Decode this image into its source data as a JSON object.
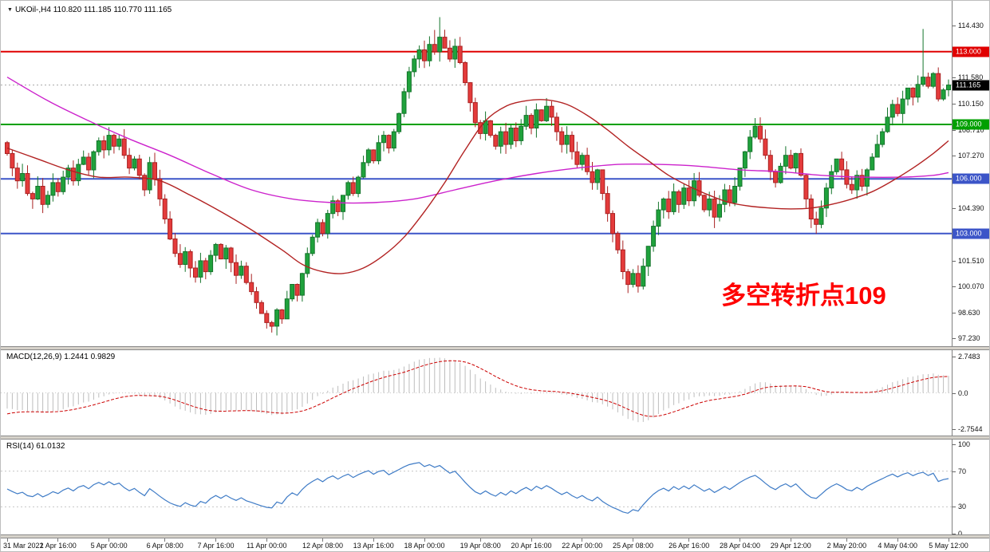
{
  "window": {
    "symbol_period": "UKOil-,H4",
    "ohlc": "110.820 111.185 110.770 111.165"
  },
  "annotation": {
    "text": "多空转折点109",
    "color": "#ff0000"
  },
  "indicators": {
    "macd_label": "MACD(12,26,9) 1.2441 0.9829",
    "rsi_label": "RSI(14) 61.0132"
  },
  "chart_data": {
    "type": "candlestick",
    "symbol": "UKOil-",
    "timeframe": "H4",
    "current_ohlc": {
      "open": 110.82,
      "high": 111.185,
      "low": 110.77,
      "close": 111.165
    },
    "ylim": [
      96.8,
      115.8
    ],
    "price_ticks": [
      "114.430",
      "111.580",
      "110.150",
      "108.710",
      "107.270",
      "104.390",
      "101.510",
      "100.070",
      "98.630",
      "97.230"
    ],
    "horizontal_levels": [
      {
        "price": 113.0,
        "label": "113.000",
        "color": "#e00000"
      },
      {
        "price": 109.0,
        "label": "109.000",
        "color": "#00a000"
      },
      {
        "price": 106.0,
        "label": "106.000",
        "color": "#3c55c8"
      },
      {
        "price": 103.0,
        "label": "103.000",
        "color": "#3c55c8"
      }
    ],
    "current_price": {
      "price": 111.165,
      "label": "111.165",
      "badge_color": "#000000"
    },
    "time_ticks": [
      {
        "bar": 0,
        "label": "31 Mar 2022"
      },
      {
        "bar": 10,
        "label": "1 Apr 16:00"
      },
      {
        "bar": 20,
        "label": "5 Apr 00:00"
      },
      {
        "bar": 31,
        "label": "6 Apr 08:00"
      },
      {
        "bar": 41,
        "label": "7 Apr 16:00"
      },
      {
        "bar": 51,
        "label": "11 Apr 00:00"
      },
      {
        "bar": 62,
        "label": "12 Apr 08:00"
      },
      {
        "bar": 72,
        "label": "13 Apr 16:00"
      },
      {
        "bar": 82,
        "label": "18 Apr 00:00"
      },
      {
        "bar": 93,
        "label": "19 Apr 08:00"
      },
      {
        "bar": 103,
        "label": "20 Apr 16:00"
      },
      {
        "bar": 113,
        "label": "22 Apr 00:00"
      },
      {
        "bar": 123,
        "label": "25 Apr 08:00"
      },
      {
        "bar": 134,
        "label": "26 Apr 16:00"
      },
      {
        "bar": 144,
        "label": "28 Apr 04:00"
      },
      {
        "bar": 154,
        "label": "29 Apr 12:00"
      },
      {
        "bar": 165,
        "label": "2 May 20:00"
      },
      {
        "bar": 175,
        "label": "4 May 04:00"
      },
      {
        "bar": 185,
        "label": "5 May 12:00"
      }
    ],
    "open_first": 108.0,
    "closes": [
      107.4,
      106.6,
      105.9,
      106.3,
      105.2,
      104.9,
      105.6,
      104.6,
      105.1,
      105.8,
      105.3,
      106.1,
      106.6,
      105.9,
      106.8,
      107.2,
      106.5,
      107.5,
      108.1,
      107.6,
      108.4,
      107.8,
      108.2,
      107.3,
      106.6,
      107.1,
      106.2,
      105.4,
      106.9,
      106.0,
      104.9,
      103.8,
      102.7,
      101.9,
      101.3,
      102.0,
      101.1,
      100.6,
      101.5,
      100.9,
      101.8,
      102.4,
      101.6,
      102.2,
      101.4,
      100.7,
      101.2,
      100.3,
      99.8,
      99.2,
      98.6,
      98.1,
      97.9,
      98.8,
      98.3,
      99.4,
      100.2,
      99.6,
      100.8,
      101.9,
      102.8,
      103.6,
      103.0,
      104.1,
      104.8,
      104.2,
      105.1,
      105.8,
      105.2,
      106.1,
      106.9,
      107.6,
      107.0,
      108.0,
      108.4,
      107.7,
      108.6,
      109.6,
      110.8,
      111.9,
      112.6,
      113.1,
      112.5,
      113.4,
      113.0,
      113.8,
      113.2,
      112.6,
      113.3,
      112.4,
      111.3,
      110.2,
      109.1,
      108.5,
      109.2,
      108.4,
      107.8,
      108.6,
      107.9,
      108.8,
      108.1,
      108.9,
      109.5,
      108.8,
      109.8,
      109.2,
      110.0,
      109.4,
      108.6,
      107.9,
      108.4,
      107.5,
      106.8,
      107.3,
      106.4,
      105.8,
      106.5,
      105.2,
      104.1,
      103.0,
      102.1,
      100.9,
      100.2,
      100.8,
      100.1,
      101.2,
      102.3,
      103.4,
      104.3,
      104.9,
      104.2,
      105.3,
      104.6,
      105.5,
      104.8,
      105.9,
      105.1,
      104.3,
      104.9,
      103.9,
      104.6,
      105.4,
      104.7,
      105.6,
      106.6,
      107.5,
      108.3,
      108.9,
      108.2,
      107.3,
      106.4,
      105.8,
      106.7,
      107.3,
      106.6,
      107.4,
      106.2,
      104.9,
      103.8,
      103.5,
      104.4,
      105.5,
      106.4,
      107.1,
      106.5,
      105.7,
      105.4,
      106.2,
      105.6,
      106.5,
      107.2,
      107.9,
      108.6,
      109.4,
      110.1,
      109.6,
      110.4,
      111.0,
      110.5,
      111.2,
      111.6,
      111.1,
      111.8,
      110.4,
      110.9,
      111.165
    ],
    "wick_overrides": [
      {
        "bar": 20,
        "high": 108.85
      },
      {
        "bar": 52,
        "low": 97.55
      },
      {
        "bar": 84,
        "high": 114.2
      },
      {
        "bar": 85,
        "high": 114.9
      },
      {
        "bar": 106,
        "high": 110.45
      },
      {
        "bar": 124,
        "low": 99.75
      },
      {
        "bar": 139,
        "low": 103.3
      },
      {
        "bar": 147,
        "high": 109.35
      },
      {
        "bar": 158,
        "low": 103.3
      },
      {
        "bar": 180,
        "high": 114.25
      }
    ],
    "candle_colors": {
      "up": "#1fa23c",
      "up_border": "#14742b",
      "down": "#e43b3b",
      "down_border": "#a92222"
    },
    "ma_lines": [
      {
        "name": "ma-magenta",
        "color": "#cc22cc",
        "points": [
          [
            0,
            111.6
          ],
          [
            8,
            110.3
          ],
          [
            16,
            109.2
          ],
          [
            24,
            108.2
          ],
          [
            32,
            107.3
          ],
          [
            40,
            106.3
          ],
          [
            48,
            105.4
          ],
          [
            56,
            104.9
          ],
          [
            64,
            104.7
          ],
          [
            72,
            104.7
          ],
          [
            80,
            104.9
          ],
          [
            88,
            105.4
          ],
          [
            96,
            105.9
          ],
          [
            104,
            106.3
          ],
          [
            112,
            106.6
          ],
          [
            120,
            106.8
          ],
          [
            128,
            106.8
          ],
          [
            136,
            106.7
          ],
          [
            144,
            106.5
          ],
          [
            152,
            106.4
          ],
          [
            160,
            106.2
          ],
          [
            168,
            106.1
          ],
          [
            176,
            106.1
          ],
          [
            182,
            106.2
          ],
          [
            185,
            106.35
          ]
        ]
      },
      {
        "name": "ma-dark-red",
        "color": "#b22222",
        "points": [
          [
            0,
            107.7
          ],
          [
            6,
            107.1
          ],
          [
            12,
            106.5
          ],
          [
            18,
            106.1
          ],
          [
            24,
            106.1
          ],
          [
            30,
            105.9
          ],
          [
            36,
            105.1
          ],
          [
            42,
            104.2
          ],
          [
            48,
            103.2
          ],
          [
            54,
            102.1
          ],
          [
            58,
            101.3
          ],
          [
            62,
            100.9
          ],
          [
            66,
            100.8
          ],
          [
            70,
            101.1
          ],
          [
            74,
            101.8
          ],
          [
            78,
            102.8
          ],
          [
            82,
            104.2
          ],
          [
            86,
            105.8
          ],
          [
            90,
            107.6
          ],
          [
            94,
            109.2
          ],
          [
            98,
            110.0
          ],
          [
            102,
            110.3
          ],
          [
            106,
            110.35
          ],
          [
            110,
            110.1
          ],
          [
            114,
            109.5
          ],
          [
            118,
            108.7
          ],
          [
            122,
            107.8
          ],
          [
            126,
            107.0
          ],
          [
            130,
            106.2
          ],
          [
            134,
            105.6
          ],
          [
            138,
            105.1
          ],
          [
            142,
            104.7
          ],
          [
            146,
            104.5
          ],
          [
            150,
            104.4
          ],
          [
            154,
            104.35
          ],
          [
            158,
            104.4
          ],
          [
            162,
            104.6
          ],
          [
            166,
            104.9
          ],
          [
            170,
            105.3
          ],
          [
            174,
            105.9
          ],
          [
            178,
            106.6
          ],
          [
            182,
            107.4
          ],
          [
            185,
            108.1
          ]
        ]
      }
    ],
    "macd": {
      "params": [
        12,
        26,
        9
      ],
      "current_macd": 1.2441,
      "current_signal": 0.9829,
      "histogram_color": "#bdbdbd",
      "signal_color": "#cc0000",
      "scale_labels": [
        "2.7483",
        "0.0",
        "-2.7544"
      ]
    },
    "rsi": {
      "period": 14,
      "current": 61.0132,
      "color": "#3e7bc6",
      "levels": [
        70,
        30
      ],
      "scale_labels": [
        "100",
        "70",
        "30",
        "0"
      ]
    }
  }
}
